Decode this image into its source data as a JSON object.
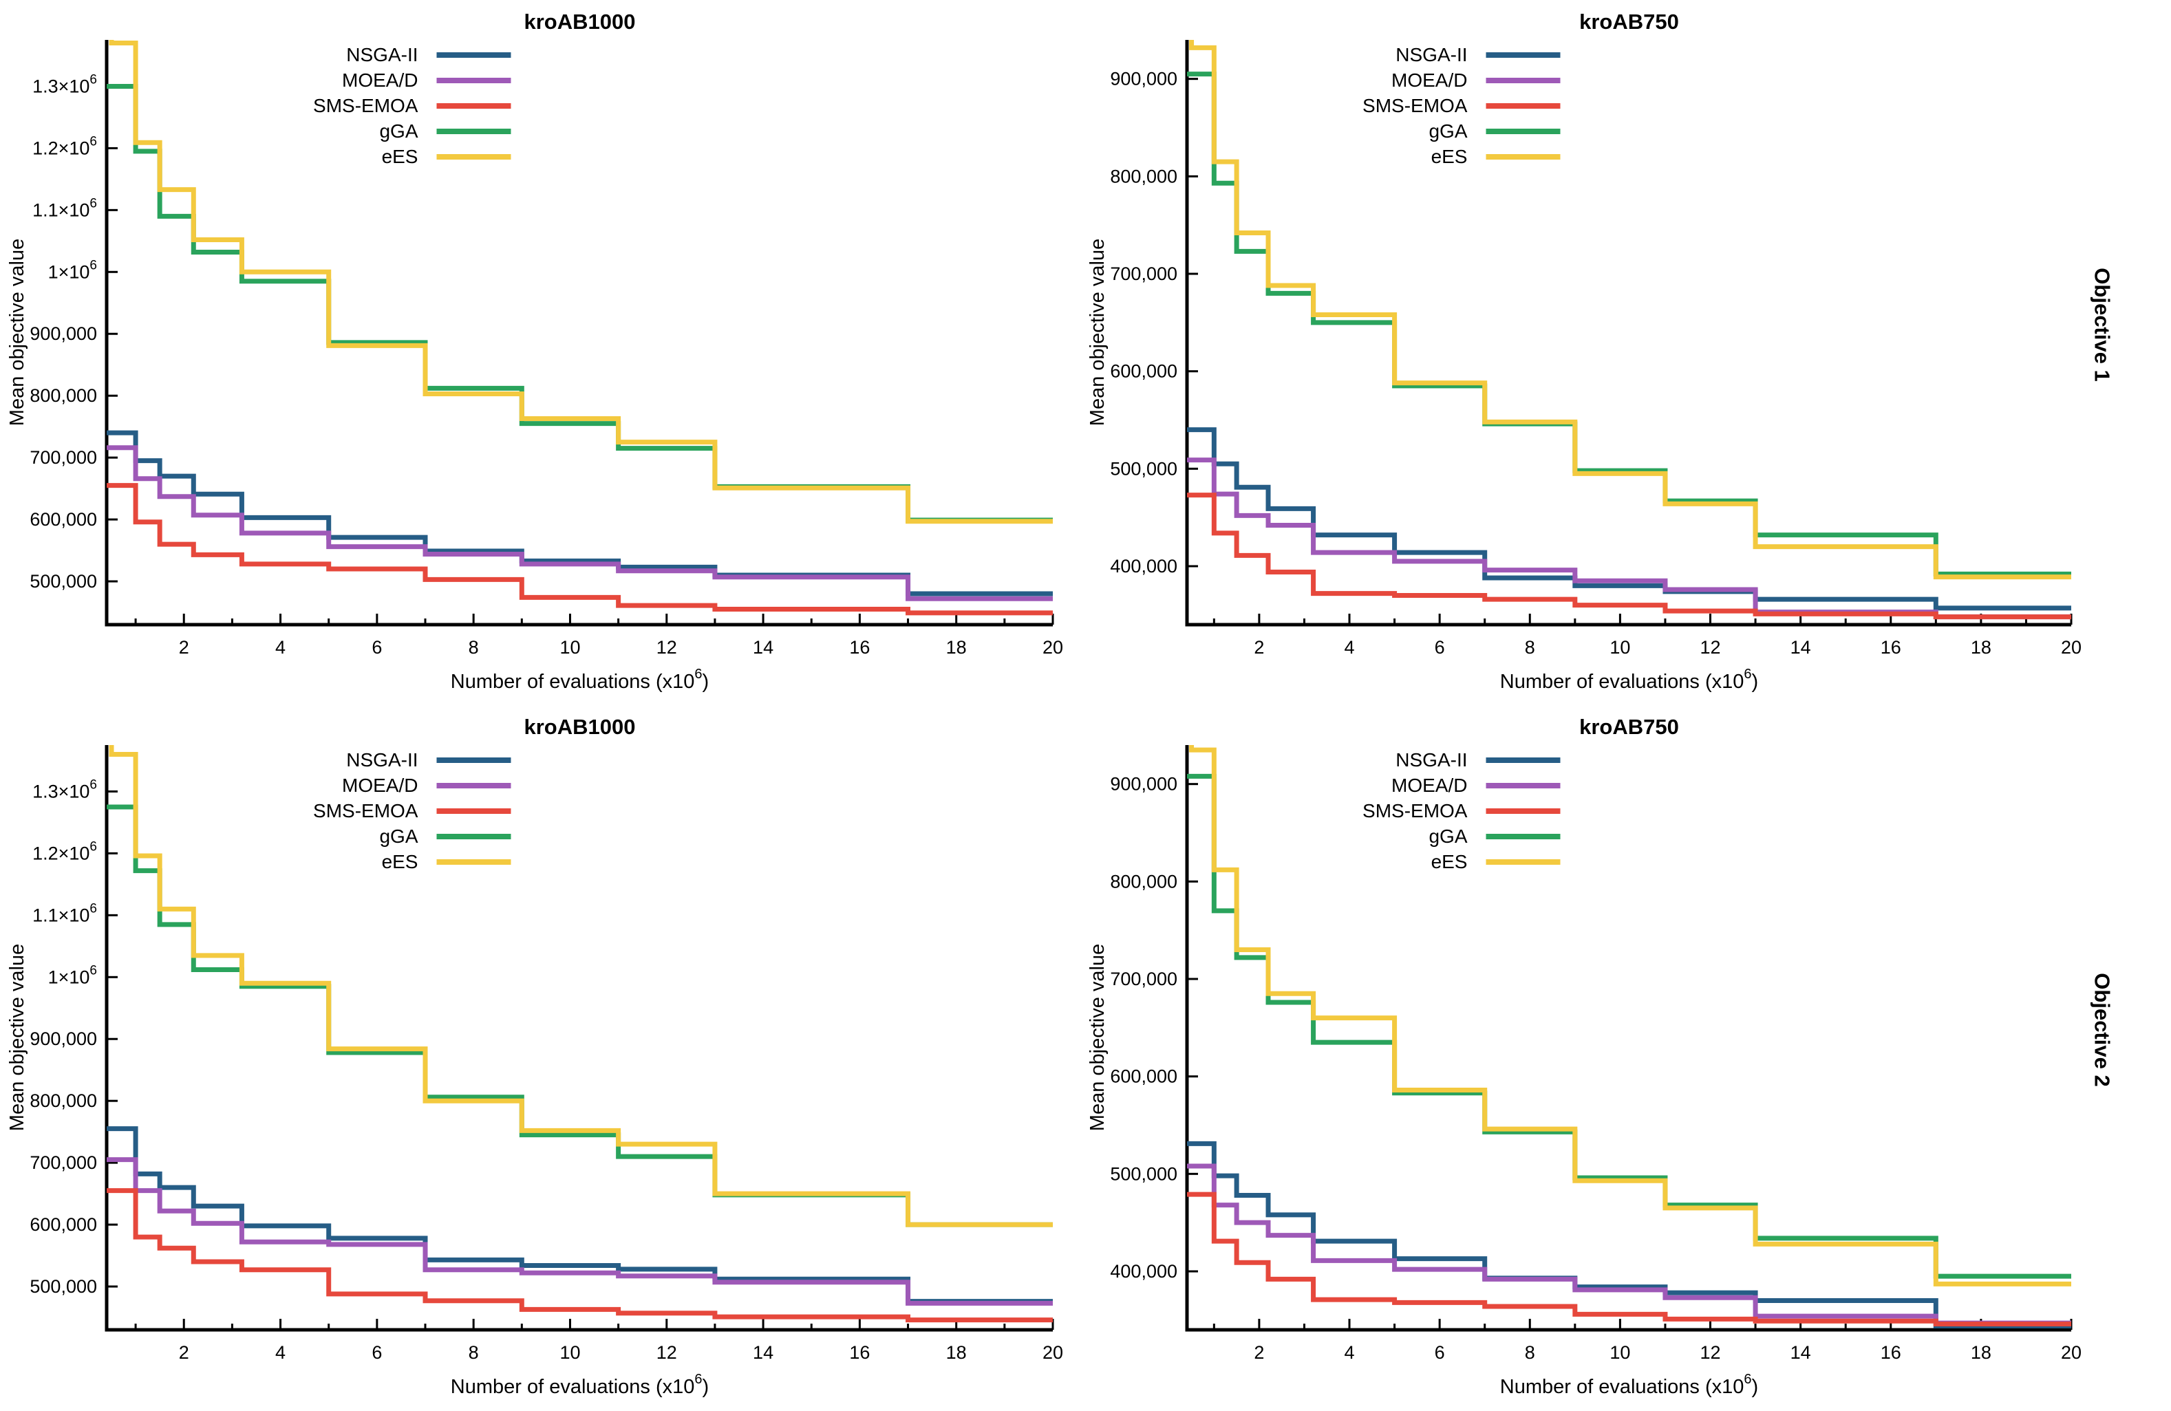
{
  "page": {
    "background": "#ffffff"
  },
  "row_labels": [
    "Objective 1",
    "Objective 2"
  ],
  "legend_order": [
    "NSGA-II",
    "MOEA/D",
    "SMS-EMOA",
    "gGA",
    "eES"
  ],
  "series_colors": {
    "NSGA-II": "#265D86",
    "MOEA/D": "#9E59B7",
    "SMS-EMOA": "#E6483C",
    "gGA": "#2AA35C",
    "eES": "#F3C93F"
  },
  "axis_color": "#000000",
  "chart_data": [
    {
      "type": "line",
      "step": true,
      "title": "kroAB1000",
      "xlabel": "Number of evaluations (x10",
      "xlabel_sup": "6",
      "xlabel_close": ")",
      "ylabel": "Mean objective value",
      "xlim": [
        0.4,
        20
      ],
      "ylim": [
        430000,
        1375000
      ],
      "x_checkpoints": [
        0.5,
        1,
        1.5,
        2.2,
        3.2,
        5,
        7,
        9,
        11,
        13,
        17
      ],
      "x_end": 20,
      "xticks_major": [
        2,
        4,
        6,
        8,
        10,
        12,
        14,
        16,
        18,
        20
      ],
      "xticks_minor": [
        1,
        3,
        5,
        7,
        9,
        11,
        13,
        15,
        17,
        19
      ],
      "yticks": [
        {
          "v": 500000,
          "t": "500,000"
        },
        {
          "v": 600000,
          "t": "600,000"
        },
        {
          "v": 700000,
          "t": "700,000"
        },
        {
          "v": 800000,
          "t": "800,000"
        },
        {
          "v": 900000,
          "t": "900,000"
        },
        {
          "v": 1000000,
          "t": "1×10",
          "sup": "6"
        },
        {
          "v": 1100000,
          "t": "1.1×10",
          "sup": "6"
        },
        {
          "v": 1200000,
          "t": "1.2×10",
          "sup": "6"
        },
        {
          "v": 1300000,
          "t": "1.3×10",
          "sup": "6"
        }
      ],
      "series": [
        {
          "name": "NSGA-II",
          "values": [
            740000,
            695000,
            670000,
            641000,
            603000,
            571000,
            549000,
            533000,
            523000,
            510000,
            480000
          ]
        },
        {
          "name": "MOEA/D",
          "values": [
            716000,
            666000,
            637000,
            607000,
            578000,
            556000,
            544000,
            528000,
            517000,
            507000,
            472000
          ]
        },
        {
          "name": "SMS-EMOA",
          "values": [
            655000,
            596000,
            560000,
            543000,
            528000,
            520000,
            503000,
            474000,
            461000,
            455000,
            449000
          ]
        },
        {
          "name": "gGA",
          "values": [
            1300000,
            1195000,
            1090000,
            1032000,
            985000,
            886000,
            812000,
            755000,
            715000,
            653000,
            599000
          ]
        },
        {
          "name": "eES",
          "from_top": true,
          "values": [
            1370000,
            1209000,
            1133000,
            1052000,
            1000000,
            881000,
            803000,
            763000,
            725000,
            651000,
            597000
          ]
        }
      ]
    },
    {
      "type": "line",
      "step": true,
      "title": "kroAB750",
      "xlabel": "Number of evaluations (x10",
      "xlabel_sup": "6",
      "xlabel_close": ")",
      "ylabel": "Mean objective value",
      "xlim": [
        0.4,
        20
      ],
      "ylim": [
        340000,
        940000
      ],
      "x_checkpoints": [
        0.5,
        1,
        1.5,
        2.2,
        3.2,
        5,
        7,
        9,
        11,
        13,
        17
      ],
      "x_end": 20,
      "xticks_major": [
        2,
        4,
        6,
        8,
        10,
        12,
        14,
        16,
        18,
        20
      ],
      "xticks_minor": [
        1,
        3,
        5,
        7,
        9,
        11,
        13,
        15,
        17,
        19
      ],
      "yticks": [
        {
          "v": 400000,
          "t": "400,000"
        },
        {
          "v": 500000,
          "t": "500,000"
        },
        {
          "v": 600000,
          "t": "600,000"
        },
        {
          "v": 700000,
          "t": "700,000"
        },
        {
          "v": 800000,
          "t": "800,000"
        },
        {
          "v": 900000,
          "t": "900,000"
        }
      ],
      "series": [
        {
          "name": "NSGA-II",
          "values": [
            540000,
            505000,
            481000,
            459000,
            432000,
            414000,
            388000,
            380000,
            374000,
            366000,
            357000
          ]
        },
        {
          "name": "MOEA/D",
          "values": [
            509000,
            474000,
            452000,
            442000,
            414000,
            405000,
            396000,
            385000,
            376000,
            353000,
            348000
          ]
        },
        {
          "name": "SMS-EMOA",
          "values": [
            473000,
            434000,
            411000,
            394000,
            372000,
            370000,
            366000,
            360000,
            354000,
            351000,
            348000
          ]
        },
        {
          "name": "gGA",
          "values": [
            905000,
            793000,
            723000,
            680000,
            650000,
            585000,
            546000,
            498000,
            467000,
            432000,
            392000
          ]
        },
        {
          "name": "eES",
          "from_top": true,
          "values": [
            932000,
            815000,
            742000,
            688000,
            658000,
            588000,
            548000,
            495000,
            464000,
            420000,
            389000
          ]
        }
      ]
    },
    {
      "type": "line",
      "step": true,
      "title": "kroAB1000",
      "xlabel": "Number of evaluations (x10",
      "xlabel_sup": "6",
      "xlabel_close": ")",
      "ylabel": "Mean objective value",
      "xlim": [
        0.4,
        20
      ],
      "ylim": [
        430000,
        1375000
      ],
      "x_checkpoints": [
        0.5,
        1,
        1.5,
        2.2,
        3.2,
        5,
        7,
        9,
        11,
        13,
        17
      ],
      "x_end": 20,
      "xticks_major": [
        2,
        4,
        6,
        8,
        10,
        12,
        14,
        16,
        18,
        20
      ],
      "xticks_minor": [
        1,
        3,
        5,
        7,
        9,
        11,
        13,
        15,
        17,
        19
      ],
      "yticks": [
        {
          "v": 500000,
          "t": "500,000"
        },
        {
          "v": 600000,
          "t": "600,000"
        },
        {
          "v": 700000,
          "t": "700,000"
        },
        {
          "v": 800000,
          "t": "800,000"
        },
        {
          "v": 900000,
          "t": "900,000"
        },
        {
          "v": 1000000,
          "t": "1×10",
          "sup": "6"
        },
        {
          "v": 1100000,
          "t": "1.1×10",
          "sup": "6"
        },
        {
          "v": 1200000,
          "t": "1.2×10",
          "sup": "6"
        },
        {
          "v": 1300000,
          "t": "1.3×10",
          "sup": "6"
        }
      ],
      "series": [
        {
          "name": "NSGA-II",
          "values": [
            755000,
            682000,
            660000,
            630000,
            598000,
            578000,
            543000,
            534000,
            528000,
            512000,
            476000
          ]
        },
        {
          "name": "MOEA/D",
          "values": [
            705000,
            655000,
            622000,
            602000,
            572000,
            568000,
            527000,
            522000,
            517000,
            507000,
            473000
          ]
        },
        {
          "name": "SMS-EMOA",
          "values": [
            655000,
            580000,
            562000,
            540000,
            527000,
            488000,
            477000,
            463000,
            457000,
            451000,
            446000
          ]
        },
        {
          "name": "gGA",
          "values": [
            1275000,
            1172000,
            1085000,
            1012000,
            985000,
            878000,
            806000,
            745000,
            710000,
            648000,
            600000
          ]
        },
        {
          "name": "eES",
          "from_top": true,
          "values": [
            1360000,
            1196000,
            1110000,
            1035000,
            990000,
            884000,
            800000,
            752000,
            730000,
            650000,
            600000
          ]
        }
      ]
    },
    {
      "type": "line",
      "step": true,
      "title": "kroAB750",
      "xlabel": "Number of evaluations (x10",
      "xlabel_sup": "6",
      "xlabel_close": ")",
      "ylabel": "Mean objective value",
      "xlim": [
        0.4,
        20
      ],
      "ylim": [
        340000,
        940000
      ],
      "x_checkpoints": [
        0.5,
        1,
        1.5,
        2.2,
        3.2,
        5,
        7,
        9,
        11,
        13,
        17
      ],
      "x_end": 20,
      "xticks_major": [
        2,
        4,
        6,
        8,
        10,
        12,
        14,
        16,
        18,
        20
      ],
      "xticks_minor": [
        1,
        3,
        5,
        7,
        9,
        11,
        13,
        15,
        17,
        19
      ],
      "yticks": [
        {
          "v": 400000,
          "t": "400,000"
        },
        {
          "v": 500000,
          "t": "500,000"
        },
        {
          "v": 600000,
          "t": "600,000"
        },
        {
          "v": 700000,
          "t": "700,000"
        },
        {
          "v": 800000,
          "t": "800,000"
        },
        {
          "v": 900000,
          "t": "900,000"
        }
      ],
      "series": [
        {
          "name": "NSGA-II",
          "values": [
            531000,
            498000,
            478000,
            458000,
            431000,
            413000,
            393000,
            384000,
            378000,
            370000,
            344000
          ]
        },
        {
          "name": "MOEA/D",
          "values": [
            508000,
            468000,
            450000,
            437000,
            411000,
            402000,
            392000,
            381000,
            373000,
            354000,
            347000
          ]
        },
        {
          "name": "SMS-EMOA",
          "values": [
            479000,
            431000,
            409000,
            392000,
            371000,
            368000,
            364000,
            356000,
            351000,
            349000,
            346000
          ]
        },
        {
          "name": "gGA",
          "values": [
            908000,
            770000,
            722000,
            676000,
            635000,
            583000,
            543000,
            496000,
            468000,
            434000,
            395000
          ]
        },
        {
          "name": "eES",
          "from_top": true,
          "values": [
            935000,
            812000,
            730000,
            685000,
            660000,
            586000,
            546000,
            493000,
            465000,
            428000,
            387000
          ]
        }
      ]
    }
  ]
}
